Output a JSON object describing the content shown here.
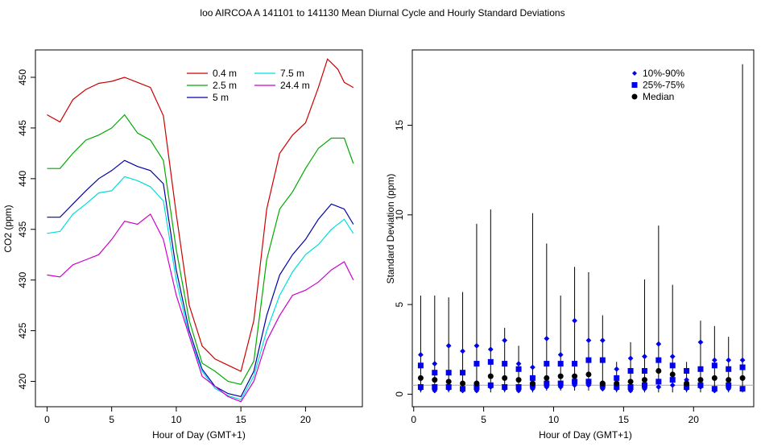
{
  "title": "loo   AIRCOA A   141101 to 141130   Mean Diurnal Cycle and Hourly Standard Deviations",
  "chart_data": [
    {
      "type": "line",
      "xlabel": "Hour of Day (GMT+1)",
      "ylabel": "CO2 (ppm)",
      "xlim": [
        -0.9,
        24.4
      ],
      "ylim": [
        417.5,
        452.7
      ],
      "xticks": [
        0,
        5,
        10,
        15,
        20
      ],
      "yticks": [
        420,
        425,
        430,
        435,
        440,
        445,
        450
      ],
      "legend_position": "top-center",
      "series": [
        {
          "name": "0.4 m",
          "color": "#cc0000",
          "x": [
            0,
            1,
            2,
            3,
            4,
            5,
            6,
            7,
            8,
            9,
            10,
            11,
            12,
            13,
            14,
            15,
            16,
            17,
            18,
            19,
            20,
            21,
            21.7,
            22.5,
            23,
            23.7
          ],
          "y": [
            446.3,
            445.6,
            447.8,
            448.8,
            449.4,
            449.6,
            450.0,
            449.5,
            449.0,
            446.2,
            436.5,
            427.5,
            423.5,
            422.2,
            421.6,
            421.0,
            426.0,
            437.0,
            442.5,
            444.3,
            445.5,
            449.0,
            451.8,
            450.8,
            449.5,
            449.0
          ]
        },
        {
          "name": "2.5 m",
          "color": "#00aa00",
          "x": [
            0,
            1,
            2,
            3,
            4,
            5,
            6,
            7,
            8,
            9,
            10,
            11,
            12,
            13,
            14,
            15,
            16,
            17,
            18,
            19,
            20,
            21,
            22,
            23,
            23.7
          ],
          "y": [
            441.0,
            441.0,
            442.5,
            443.8,
            444.3,
            445.0,
            446.3,
            444.5,
            443.8,
            441.8,
            433.0,
            426.0,
            421.8,
            421.0,
            420.0,
            419.7,
            422.0,
            432.0,
            437.0,
            438.7,
            441.0,
            443.0,
            444.0,
            444.0,
            441.5
          ]
        },
        {
          "name": "5 m",
          "color": "#0000aa",
          "x": [
            0,
            1,
            2,
            3,
            4,
            5,
            6,
            7,
            8,
            9,
            10,
            11,
            12,
            13,
            14,
            15,
            16,
            17,
            18,
            19,
            20,
            21,
            22,
            23,
            23.7
          ],
          "y": [
            436.2,
            436.2,
            437.5,
            438.8,
            440.0,
            440.8,
            441.8,
            441.2,
            440.8,
            439.5,
            431.0,
            425.0,
            421.2,
            419.5,
            418.8,
            418.5,
            421.0,
            426.5,
            430.5,
            432.5,
            434.0,
            436.0,
            437.5,
            437.0,
            435.5
          ]
        },
        {
          "name": "7.5 m",
          "color": "#00dddd",
          "x": [
            0,
            1,
            2,
            3,
            4,
            5,
            6,
            7,
            8,
            9,
            10,
            11,
            12,
            13,
            14,
            15,
            16,
            17,
            18,
            19,
            20,
            21,
            22,
            23,
            23.7
          ],
          "y": [
            434.6,
            434.8,
            436.5,
            437.5,
            438.6,
            438.8,
            440.2,
            439.8,
            439.2,
            437.8,
            430.0,
            424.5,
            421.0,
            419.3,
            418.6,
            418.2,
            420.5,
            425.0,
            428.5,
            430.8,
            432.5,
            433.5,
            435.0,
            436.0,
            434.6
          ]
        },
        {
          "name": "24.4 m",
          "color": "#cc00cc",
          "x": [
            0,
            1,
            2,
            3,
            4,
            5,
            6,
            7,
            8,
            9,
            10,
            11,
            12,
            13,
            14,
            15,
            16,
            17,
            18,
            19,
            20,
            21,
            22,
            23,
            23.7
          ],
          "y": [
            430.5,
            430.3,
            431.5,
            432.0,
            432.5,
            434.0,
            435.8,
            435.5,
            436.5,
            434.0,
            428.5,
            424.5,
            420.5,
            419.5,
            418.5,
            418.0,
            420.0,
            424.0,
            426.5,
            428.5,
            429.0,
            429.8,
            431.0,
            431.8,
            430.0
          ]
        }
      ]
    },
    {
      "type": "scatter",
      "xlabel": "Hour of Day (GMT+1)",
      "ylabel": "Standard Deviation (ppm)",
      "xlim": [
        -0.1,
        24.3
      ],
      "ylim": [
        -0.7,
        19.2
      ],
      "xticks": [
        0,
        5,
        10,
        15,
        20
      ],
      "yticks": [
        0,
        5,
        10,
        15
      ],
      "reference_line_y": 0.5,
      "legend_position": "top-right",
      "legend": [
        {
          "name": "10%-90%",
          "marker": "diamond",
          "color": "#0000ee"
        },
        {
          "name": "25%-75%",
          "marker": "square",
          "color": "#0000ee"
        },
        {
          "name": "Median",
          "marker": "circle",
          "color": "#000000"
        }
      ],
      "hours": [
        0.5,
        1.5,
        2.5,
        3.5,
        4.5,
        5.5,
        6.5,
        7.5,
        8.5,
        9.5,
        10.5,
        11.5,
        12.5,
        13.5,
        14.5,
        15.5,
        16.5,
        17.5,
        18.5,
        19.5,
        20.5,
        21.5,
        22.5,
        23.5
      ],
      "min": [
        0.1,
        0.1,
        0.1,
        0.1,
        0.1,
        0.1,
        0.1,
        0.1,
        0.1,
        0.2,
        0.2,
        0.2,
        0.2,
        0.2,
        0.1,
        0.1,
        0.1,
        0.1,
        0.1,
        0.1,
        0.1,
        0.1,
        0.1,
        0.1
      ],
      "max": [
        5.5,
        5.5,
        5.4,
        5.7,
        9.5,
        10.3,
        3.7,
        2.7,
        10.1,
        8.4,
        5.5,
        7.1,
        6.8,
        4.4,
        1.8,
        2.9,
        6.4,
        9.4,
        6.1,
        1.8,
        4.1,
        3.8,
        3.2,
        18.4
      ],
      "p10": [
        0.3,
        0.2,
        0.3,
        0.2,
        0.2,
        0.4,
        0.3,
        0.2,
        0.3,
        0.4,
        0.4,
        0.5,
        0.5,
        0.3,
        0.3,
        0.2,
        0.3,
        0.4,
        0.5,
        0.3,
        0.4,
        0.2,
        0.3,
        0.3
      ],
      "p25": [
        0.4,
        0.4,
        0.4,
        0.3,
        0.4,
        0.5,
        0.4,
        0.4,
        0.5,
        0.6,
        0.6,
        0.7,
        0.7,
        0.5,
        0.4,
        0.4,
        0.5,
        0.7,
        0.8,
        0.4,
        0.5,
        0.3,
        0.5,
        0.3
      ],
      "median": [
        0.9,
        0.8,
        0.7,
        0.6,
        0.6,
        1.0,
        0.9,
        0.8,
        0.6,
        0.9,
        1.0,
        1.0,
        1.1,
        0.6,
        0.6,
        0.7,
        0.8,
        1.3,
        1.1,
        0.6,
        0.8,
        0.9,
        0.8,
        0.9
      ],
      "p75": [
        1.6,
        1.2,
        1.2,
        1.2,
        1.7,
        1.8,
        1.7,
        1.4,
        0.9,
        1.7,
        1.7,
        1.7,
        1.9,
        1.9,
        0.9,
        1.3,
        1.3,
        1.9,
        1.6,
        1.3,
        1.4,
        1.6,
        1.4,
        1.5
      ],
      "p90": [
        2.2,
        1.7,
        2.7,
        2.4,
        2.7,
        2.5,
        3.0,
        1.7,
        1.5,
        3.1,
        2.2,
        4.1,
        3.0,
        3.0,
        1.4,
        2.0,
        2.1,
        2.8,
        2.1,
        0.8,
        2.9,
        1.9,
        1.9,
        1.9
      ]
    }
  ]
}
